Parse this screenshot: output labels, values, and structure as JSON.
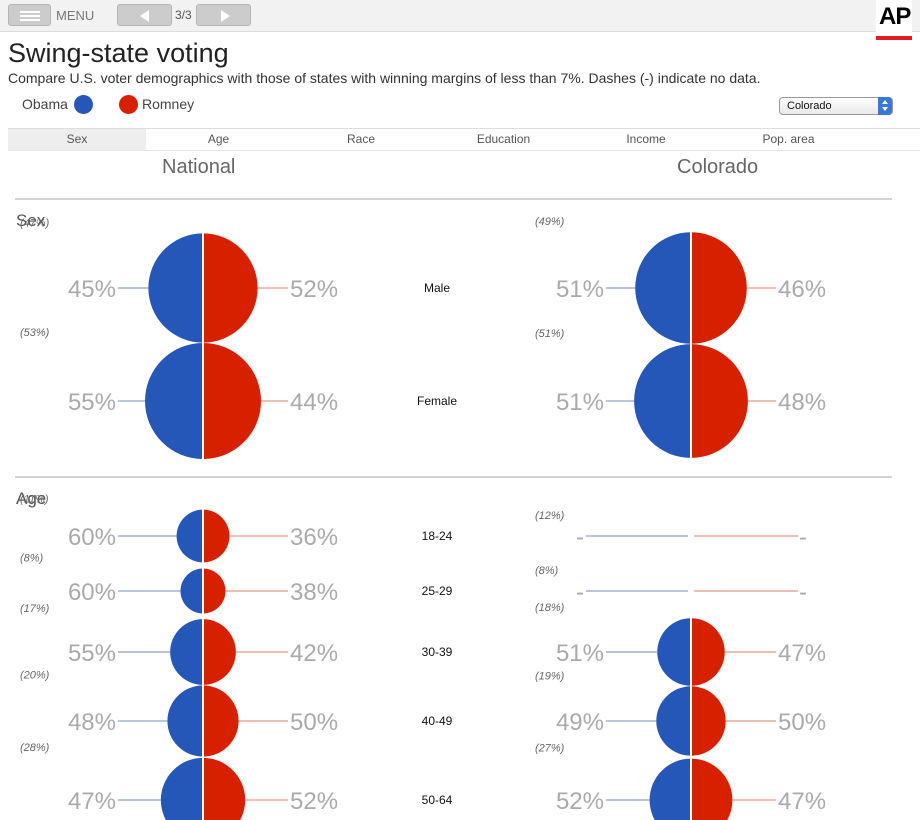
{
  "topbar": {
    "menu_label": "MENU",
    "page_count": "3/3",
    "logo_text": "AP"
  },
  "header": {
    "title": "Swing-state voting",
    "subtitle": "Compare U.S. voter demographics with those of states with winning margins of less than 7%. Dashes (-) indicate no data."
  },
  "legend": {
    "obama": "Obama",
    "romney": "Romney"
  },
  "state_select": {
    "value": "Colorado"
  },
  "tabs": [
    "Sex",
    "Age",
    "Race",
    "Education",
    "Income",
    "Pop. area"
  ],
  "columns": {
    "left": "National",
    "right": "Colorado"
  },
  "colors": {
    "obama": "#2457b7",
    "romney": "#d72000",
    "obama_line": "#9fb3cf",
    "romney_line": "#e8a79b",
    "pct": "#aaaaaa"
  },
  "chart_data": {
    "type": "pie",
    "series_names": [
      "Obama",
      "Romney"
    ],
    "sections": [
      {
        "title": "Sex",
        "groups": [
          {
            "label": "Male",
            "national": {
              "share": "(47%)",
              "obama": "45%",
              "romney": "52%",
              "share_value": 47
            },
            "state": {
              "share": "(49%)",
              "obama": "51%",
              "romney": "46%",
              "share_value": 49
            }
          },
          {
            "label": "Female",
            "national": {
              "share": "(53%)",
              "obama": "55%",
              "romney": "44%",
              "share_value": 53
            },
            "state": {
              "share": "(51%)",
              "obama": "51%",
              "romney": "48%",
              "share_value": 51
            }
          }
        ]
      },
      {
        "title": "Age",
        "groups": [
          {
            "label": "18-24",
            "national": {
              "share": "(11%)",
              "obama": "60%",
              "romney": "36%",
              "share_value": 11
            },
            "state": {
              "share": "(12%)",
              "obama": "-",
              "romney": "-",
              "share_value": null
            }
          },
          {
            "label": "25-29",
            "national": {
              "share": "(8%)",
              "obama": "60%",
              "romney": "38%",
              "share_value": 8
            },
            "state": {
              "share": "(8%)",
              "obama": "-",
              "romney": "-",
              "share_value": null
            }
          },
          {
            "label": "30-39",
            "national": {
              "share": "(17%)",
              "obama": "55%",
              "romney": "42%",
              "share_value": 17
            },
            "state": {
              "share": "(18%)",
              "obama": "51%",
              "romney": "47%",
              "share_value": 18
            }
          },
          {
            "label": "40-49",
            "national": {
              "share": "(20%)",
              "obama": "48%",
              "romney": "50%",
              "share_value": 20
            },
            "state": {
              "share": "(19%)",
              "obama": "49%",
              "romney": "50%",
              "share_value": 19
            }
          },
          {
            "label": "50-64",
            "national": {
              "share": "(28%)",
              "obama": "47%",
              "romney": "52%",
              "share_value": 28
            },
            "state": {
              "share": "(27%)",
              "obama": "52%",
              "romney": "47%",
              "share_value": 27
            }
          }
        ]
      }
    ]
  }
}
